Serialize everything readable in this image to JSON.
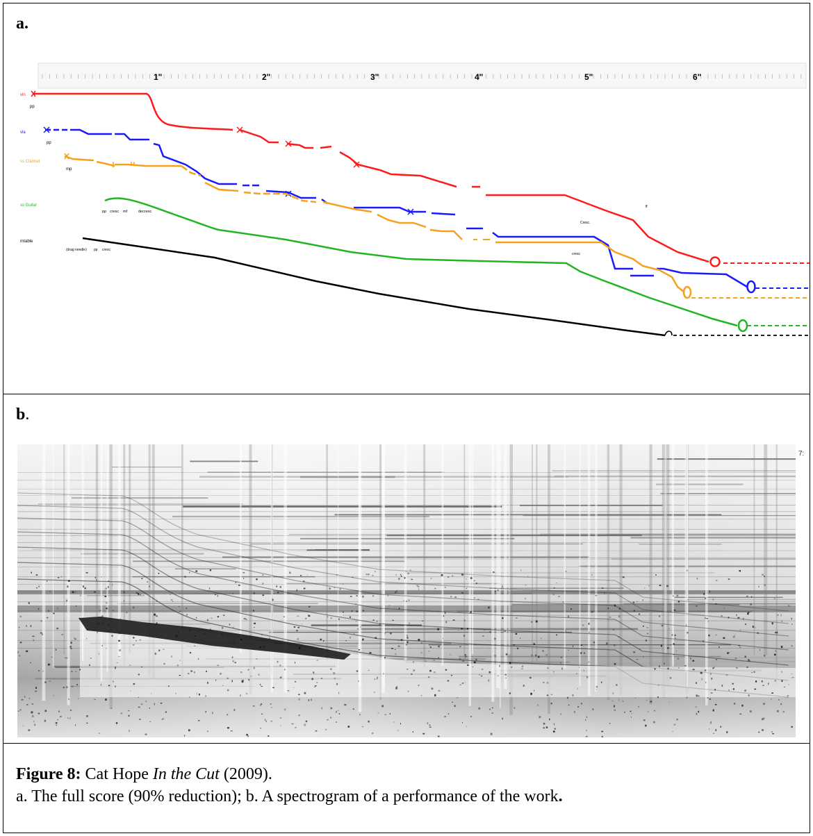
{
  "panel_a": {
    "label": "a.",
    "time_markers": [
      "1\"",
      "2\"",
      "3\"",
      "4\"",
      "5\"",
      "6\""
    ],
    "instruments": [
      {
        "label": "vln",
        "color": "#ff1a1a"
      },
      {
        "label": "vla",
        "color": "#1a1aff"
      },
      {
        "label": "ss Clarinet",
        "color": "#f7a11a"
      },
      {
        "label": "ss Guitar",
        "color": "#22b522"
      },
      {
        "label": "rntable",
        "color": "#000000"
      }
    ],
    "dynamics": {
      "vln": "pp",
      "vla": "pp",
      "clarinet": "mp",
      "guitar_1": "pp",
      "guitar_2": "cresc",
      "guitar_3": "mf",
      "guitar_4": "decresc",
      "turntable_1": "(drag needle)",
      "turntable_2": "pp",
      "turntable_3": "cresc",
      "late_1": "Cresc.",
      "late_2": "cresc",
      "late_3": "ff"
    }
  },
  "panel_b": {
    "label": "b",
    "label_suffix": ".",
    "corner_mark": "7:"
  },
  "caption": {
    "figure_label": "Figure 8:",
    "line1_text": " Cat Hope ",
    "line1_title": "In the Cut",
    "line1_year": " (2009).",
    "line2_text": "a. The full score (90% reduction); b. A spectrogram of a performance of the work",
    "line2_end": "."
  }
}
